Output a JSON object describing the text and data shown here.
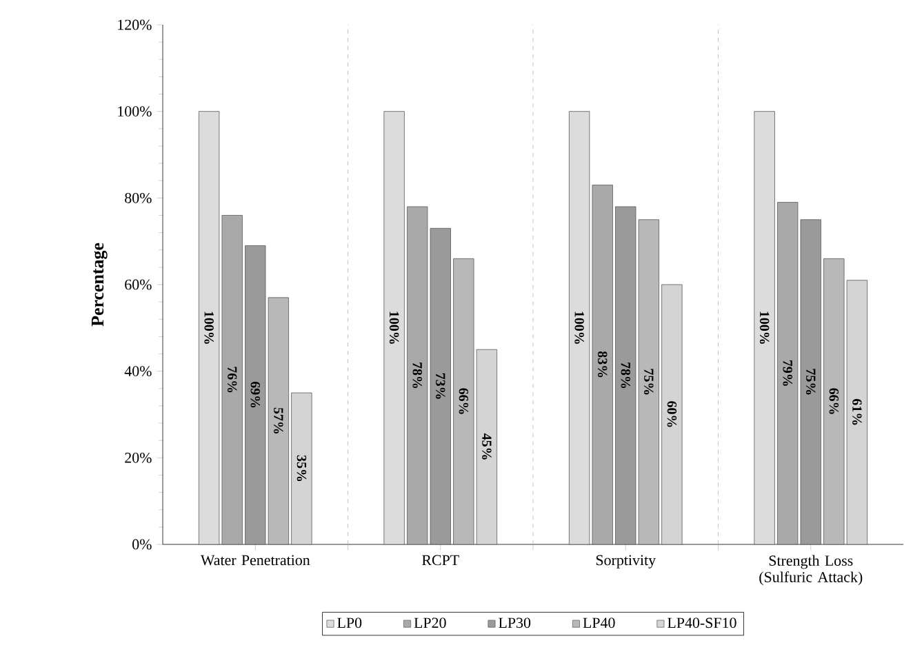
{
  "chart_data": {
    "type": "bar",
    "ylabel": "Percentage",
    "categories": [
      "Water Penetration",
      "RCPT",
      "Sorptivity",
      "Strength Loss (Sulfuric Attack)"
    ],
    "series": [
      {
        "name": "LP0",
        "color": "#dcdcdc",
        "values": [
          100,
          100,
          100,
          100
        ],
        "value_labels": [
          "100%",
          "100%",
          "100%",
          "100%"
        ]
      },
      {
        "name": "LP20",
        "color": "#a9a9a9",
        "values": [
          76,
          78,
          83,
          79
        ],
        "value_labels": [
          "76%",
          "78%",
          "83%",
          "79%"
        ]
      },
      {
        "name": "LP30",
        "color": "#9a9a9a",
        "values": [
          69,
          73,
          78,
          75
        ],
        "value_labels": [
          "69%",
          "73%",
          "78%",
          "75%"
        ]
      },
      {
        "name": "LP40",
        "color": "#b8b8b8",
        "values": [
          57,
          66,
          75,
          66
        ],
        "value_labels": [
          "57%",
          "66%",
          "75%",
          "66%"
        ]
      },
      {
        "name": "LP40-SF10",
        "color": "#d4d4d4",
        "values": [
          35,
          45,
          60,
          61
        ],
        "value_labels": [
          "35%",
          "45%",
          "60%",
          "61%"
        ]
      }
    ],
    "ylim": [
      0,
      120
    ],
    "yticks": [
      {
        "value": 0,
        "label": "0%"
      },
      {
        "value": 20,
        "label": "20%"
      },
      {
        "value": 40,
        "label": "40%"
      },
      {
        "value": 60,
        "label": "60%"
      },
      {
        "value": 80,
        "label": "80%"
      },
      {
        "value": 100,
        "label": "100%"
      },
      {
        "value": 120,
        "label": "120%"
      }
    ],
    "grid": "x",
    "legend": "bottom"
  }
}
